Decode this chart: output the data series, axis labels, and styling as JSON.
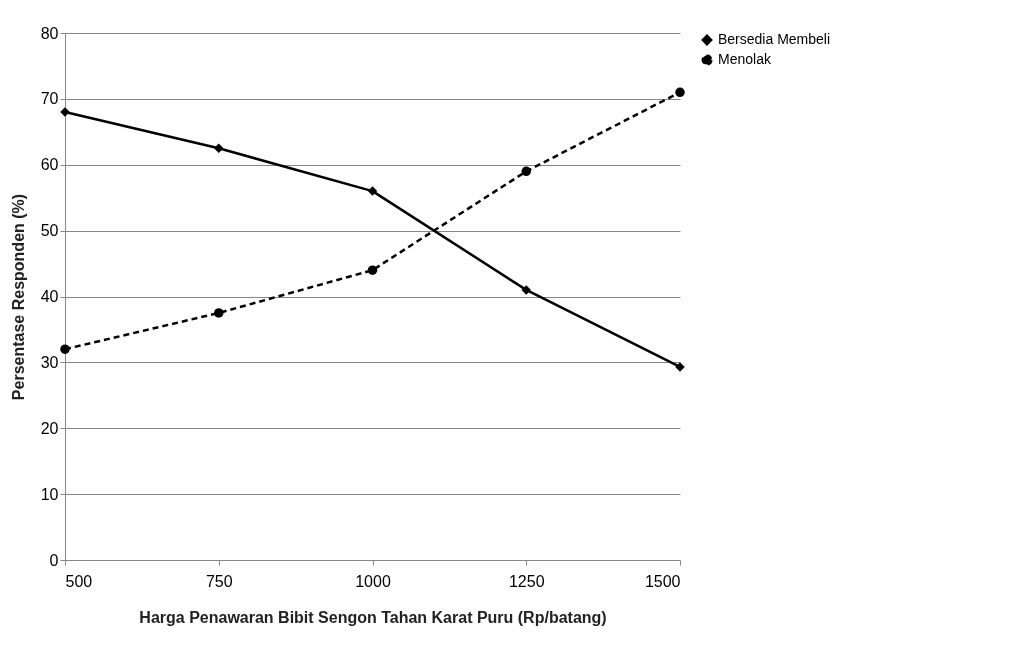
{
  "chart_data": {
    "type": "line",
    "xlabel": "Harga Penawaran Bibit  Sengon Tahan Karat Puru (Rp/batang)",
    "ylabel": "Persentase Responden (%)",
    "x": [
      500,
      750,
      1000,
      1250,
      1500
    ],
    "series": [
      {
        "name": "Bersedia Membeli",
        "color": "#000000",
        "values": [
          68,
          62.5,
          56,
          41,
          29.3
        ],
        "marker": "diamond",
        "line_style": "solid"
      },
      {
        "name": "Menolak",
        "color": "#000000",
        "values": [
          32,
          37.5,
          44,
          59,
          71
        ],
        "marker": "circle",
        "line_style": "dashed"
      }
    ],
    "xlim": [
      500,
      1500
    ],
    "xticks": [
      500,
      750,
      1000,
      1250,
      1500
    ],
    "ylim": [
      0,
      80
    ],
    "yticks": [
      0,
      10,
      20,
      30,
      40,
      50,
      60,
      70,
      80
    ],
    "grid": "y",
    "legend": "right"
  }
}
